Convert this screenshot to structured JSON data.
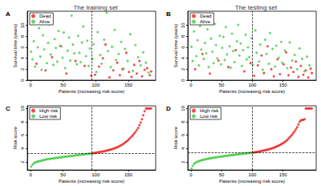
{
  "chart_data": [
    {
      "type": "scatter",
      "title": "The training set",
      "panel_label": "A",
      "x_label": "Patients (increasing risk score)",
      "y_label": "Survival time (years)",
      "xlim": [
        -5,
        192
      ],
      "xticks": [
        0,
        50,
        100,
        150
      ],
      "ylim": [
        0,
        12.6
      ],
      "yticks": [
        0,
        2,
        4,
        6,
        8,
        10
      ],
      "grid": false,
      "legend": "top-left",
      "marker": "circle",
      "cutoff_x": 94,
      "series": [
        {
          "name": "Dead",
          "color": "#ee2222",
          "x": [
            9,
            23,
            33,
            47,
            55,
            69,
            83,
            93,
            99,
            105,
            111,
            115,
            121,
            127,
            133,
            137,
            141,
            147,
            151,
            155,
            159,
            163,
            167,
            171,
            175,
            179,
            183,
            185
          ],
          "values": [
            3.0,
            1.8,
            4.2,
            6.2,
            1.2,
            3.5,
            2.6,
            0.8,
            1.0,
            2.5,
            4.0,
            6.5,
            0.5,
            1.8,
            3.2,
            0.9,
            2.0,
            5.0,
            1.5,
            0.6,
            2.8,
            1.2,
            3.5,
            0.7,
            1.9,
            2.2,
            0.9,
            1.6
          ]
        },
        {
          "name": "Alive",
          "color": "#44cc44",
          "x": [
            1,
            3,
            5,
            7,
            11,
            13,
            15,
            17,
            19,
            21,
            25,
            27,
            29,
            31,
            35,
            37,
            39,
            41,
            43,
            45,
            49,
            51,
            53,
            57,
            59,
            61,
            63,
            65,
            67,
            71,
            73,
            75,
            77,
            79,
            81,
            85,
            87,
            89,
            91,
            95,
            97,
            101,
            103,
            107,
            109,
            113,
            117,
            119,
            123,
            125,
            129,
            131,
            135,
            139,
            143,
            145,
            149,
            153,
            157,
            161,
            165,
            169,
            173,
            177,
            181
          ],
          "values": [
            5.2,
            3.8,
            7.1,
            2.5,
            6.0,
            9.5,
            4.3,
            1.9,
            8.2,
            5.6,
            3.1,
            6.8,
            10.2,
            4.7,
            2.8,
            7.5,
            5.9,
            3.4,
            9.0,
            6.3,
            4.1,
            8.7,
            2.2,
            5.4,
            7.8,
            3.6,
            11.8,
            6.5,
            4.9,
            2.9,
            8.1,
            5.0,
            3.3,
            6.9,
            9.8,
            4.4,
            7.2,
            2.6,
            5.8,
            3.9,
            6.6,
            1.5,
            8.8,
            4.6,
            3.0,
            7.4,
            12.3,
            5.3,
            2.4,
            6.1,
            9.2,
            3.7,
            4.8,
            7.0,
            2.1,
            5.7,
            3.5,
            8.4,
            1.7,
            6.4,
            4.2,
            2.7,
            5.1,
            3.2,
            1.4
          ]
        }
      ]
    },
    {
      "type": "scatter",
      "title": "The testing set",
      "panel_label": "B",
      "x_label": "Patients (increasing risk score)",
      "y_label": "Survival time (years)",
      "xlim": [
        -5,
        204
      ],
      "xticks": [
        0,
        50,
        100,
        150
      ],
      "ylim": [
        0,
        12.6
      ],
      "yticks": [
        0,
        2,
        4,
        6,
        8,
        10
      ],
      "grid": false,
      "legend": "top-left",
      "marker": "circle",
      "cutoff_x": 100,
      "series": [
        {
          "name": "Dead",
          "color": "#ee2222",
          "x": [
            7,
            19,
            31,
            45,
            61,
            73,
            87,
            97,
            103,
            109,
            115,
            119,
            125,
            131,
            135,
            141,
            145,
            151,
            155,
            159,
            163,
            167,
            171,
            175,
            179,
            183,
            187,
            191,
            195,
            197
          ],
          "values": [
            2.0,
            4.8,
            1.2,
            3.6,
            2.4,
            5.5,
            1.6,
            3.1,
            0.8,
            2.7,
            4.5,
            1.3,
            6.2,
            2.0,
            0.7,
            3.8,
            1.1,
            2.9,
            5.1,
            0.9,
            2.3,
            1.5,
            3.4,
            0.6,
            2.6,
            1.0,
            1.8,
            0.5,
            2.1,
            1.3
          ]
        },
        {
          "name": "Alive",
          "color": "#44cc44",
          "x": [
            1,
            3,
            5,
            9,
            11,
            13,
            15,
            17,
            21,
            23,
            25,
            27,
            29,
            33,
            35,
            37,
            39,
            41,
            43,
            47,
            49,
            51,
            53,
            55,
            57,
            59,
            63,
            65,
            67,
            69,
            71,
            75,
            77,
            79,
            81,
            83,
            85,
            89,
            91,
            93,
            95,
            99,
            101,
            105,
            107,
            111,
            113,
            117,
            121,
            123,
            127,
            129,
            133,
            137,
            139,
            143,
            147,
            149,
            153,
            157,
            161,
            165,
            169,
            173,
            177,
            181,
            185,
            189,
            193
          ],
          "values": [
            6.1,
            3.5,
            8.9,
            4.4,
            7.3,
            2.7,
            9.9,
            5.6,
            3.9,
            6.8,
            4.9,
            9.3,
            2.4,
            7.6,
            5.2,
            3.1,
            10.3,
            6.4,
            4.0,
            8.1,
            2.9,
            5.9,
            7.9,
            3.7,
            9.7,
            4.7,
            6.2,
            2.3,
            8.5,
            5.3,
            3.3,
            7.1,
            10.1,
            4.5,
            6.7,
            2.6,
            5.5,
            8.3,
            3.8,
            6.0,
            4.2,
            7.7,
            2.8,
            9.1,
            5.0,
            3.4,
            6.5,
            1.9,
            7.4,
            4.8,
            3.0,
            8.6,
            5.7,
            2.5,
            6.3,
            4.1,
            7.0,
            3.2,
            5.4,
            2.2,
            6.9,
            3.6,
            4.6,
            2.0,
            5.8,
            3.9,
            1.6,
            4.3,
            2.7
          ]
        }
      ]
    },
    {
      "type": "scatter",
      "panel_label": "C",
      "x_label": "Patients (increasing risk score)",
      "y_label": "Risk score",
      "xlim": [
        -5,
        192
      ],
      "xticks": [
        0,
        50,
        100,
        150
      ],
      "ylim": [
        0.8,
        10.4
      ],
      "yticks": [
        2,
        4,
        6,
        8,
        10
      ],
      "grid": false,
      "legend": "top-left",
      "marker": "circle",
      "cutoff_x": 94,
      "cutoff_y": 3.3,
      "series": [
        {
          "name": "High risk",
          "color": "#ee2222",
          "x": [
            95,
            97,
            99,
            101,
            103,
            105,
            107,
            109,
            111,
            113,
            115,
            117,
            119,
            121,
            123,
            125,
            127,
            129,
            131,
            133,
            135,
            137,
            139,
            141,
            143,
            145,
            147,
            149,
            151,
            153,
            155,
            157,
            159,
            161,
            163,
            165,
            167,
            169,
            171,
            173,
            175,
            177,
            179,
            181,
            183,
            185
          ],
          "values": [
            3.3,
            3.33,
            3.36,
            3.4,
            3.43,
            3.46,
            3.5,
            3.53,
            3.57,
            3.6,
            3.65,
            3.7,
            3.75,
            3.8,
            3.86,
            3.92,
            3.98,
            4.05,
            4.12,
            4.2,
            4.3,
            4.4,
            4.5,
            4.62,
            4.75,
            4.9,
            5.05,
            5.2,
            5.4,
            5.6,
            5.8,
            6.0,
            6.25,
            6.5,
            6.8,
            7.1,
            7.5,
            7.9,
            8.4,
            9.0,
            9.6,
            10,
            10,
            10,
            10,
            10
          ]
        },
        {
          "name": "Low risk",
          "color": "#44cc44",
          "x": [
            1,
            3,
            5,
            7,
            9,
            11,
            13,
            15,
            17,
            19,
            21,
            23,
            25,
            27,
            29,
            31,
            33,
            35,
            37,
            39,
            41,
            43,
            45,
            47,
            49,
            51,
            53,
            55,
            57,
            59,
            61,
            63,
            65,
            67,
            69,
            71,
            73,
            75,
            77,
            79,
            81,
            83,
            85,
            87,
            89,
            91,
            93
          ],
          "values": [
            1.3,
            1.6,
            1.8,
            1.9,
            2.0,
            2.05,
            2.1,
            2.15,
            2.2,
            2.25,
            2.3,
            2.35,
            2.4,
            2.42,
            2.45,
            2.48,
            2.5,
            2.53,
            2.56,
            2.6,
            2.62,
            2.65,
            2.68,
            2.7,
            2.72,
            2.75,
            2.78,
            2.8,
            2.83,
            2.86,
            2.88,
            2.9,
            2.93,
            2.96,
            2.98,
            3.0,
            3.02,
            3.05,
            3.08,
            3.1,
            3.12,
            3.15,
            3.17,
            3.2,
            3.22,
            3.25,
            3.28
          ]
        }
      ]
    },
    {
      "type": "scatter",
      "panel_label": "D",
      "x_label": "Patients (increasing risk score)",
      "y_label": "Risk score",
      "xlim": [
        -5,
        204
      ],
      "xticks": [
        0,
        50,
        100,
        150
      ],
      "ylim": [
        0.8,
        10.4
      ],
      "yticks": [
        2,
        4,
        6,
        8,
        10
      ],
      "grid": false,
      "legend": "top-left",
      "marker": "circle",
      "cutoff_x": 100,
      "cutoff_y": 3.4,
      "series": [
        {
          "name": "High risk",
          "color": "#ee2222",
          "x": [
            101,
            103,
            105,
            107,
            109,
            111,
            113,
            115,
            117,
            119,
            121,
            123,
            125,
            127,
            129,
            131,
            133,
            135,
            137,
            139,
            141,
            143,
            145,
            147,
            149,
            151,
            153,
            155,
            157,
            159,
            161,
            163,
            165,
            167,
            169,
            171,
            173,
            175,
            177,
            179,
            181,
            183,
            185,
            187,
            189,
            191,
            193,
            195,
            197
          ],
          "values": [
            3.4,
            3.43,
            3.46,
            3.5,
            3.53,
            3.57,
            3.6,
            3.64,
            3.68,
            3.72,
            3.76,
            3.8,
            3.85,
            3.9,
            3.95,
            4.0,
            4.06,
            4.12,
            4.2,
            4.28,
            4.36,
            4.45,
            4.55,
            4.65,
            4.76,
            4.88,
            5.0,
            5.15,
            5.3,
            5.5,
            5.7,
            5.9,
            6.1,
            6.35,
            6.6,
            6.9,
            7.2,
            7.6,
            8.0,
            8.2,
            8.3,
            8.3,
            8.4,
            10,
            10,
            10,
            10,
            10,
            10
          ]
        },
        {
          "name": "Low risk",
          "color": "#44cc44",
          "x": [
            1,
            3,
            5,
            7,
            9,
            11,
            13,
            15,
            17,
            19,
            21,
            23,
            25,
            27,
            29,
            31,
            33,
            35,
            37,
            39,
            41,
            43,
            45,
            47,
            49,
            51,
            53,
            55,
            57,
            59,
            61,
            63,
            65,
            67,
            69,
            71,
            73,
            75,
            77,
            79,
            81,
            83,
            85,
            87,
            89,
            91,
            93,
            95,
            97,
            99
          ],
          "values": [
            1.0,
            1.4,
            1.7,
            1.85,
            1.95,
            2.05,
            2.12,
            2.18,
            2.24,
            2.3,
            2.34,
            2.38,
            2.42,
            2.46,
            2.5,
            2.53,
            2.56,
            2.6,
            2.63,
            2.66,
            2.69,
            2.72,
            2.75,
            2.78,
            2.8,
            2.83,
            2.85,
            2.88,
            2.9,
            2.93,
            2.95,
            2.98,
            3.0,
            3.02,
            3.05,
            3.07,
            3.1,
            3.12,
            3.15,
            3.17,
            3.2,
            3.22,
            3.24,
            3.26,
            3.28,
            3.3,
            3.32,
            3.34,
            3.36,
            3.38
          ]
        }
      ]
    }
  ]
}
